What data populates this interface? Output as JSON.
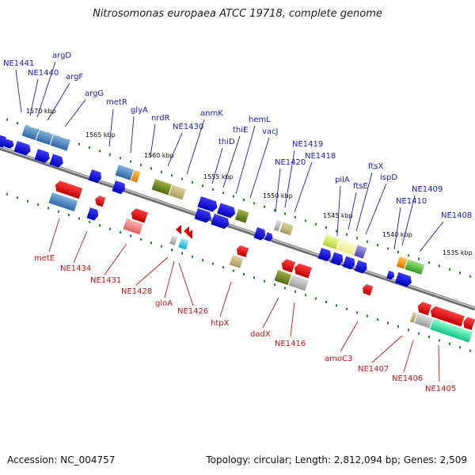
{
  "title": "Nitrosomonas europaea ATCC 19718, complete genome",
  "accession": "Accession: NC_004757",
  "summary": "Topology: circular; Length: 2,812,094 bp; Genes: 2,509",
  "colors": {
    "backbone": "#8a8a8a",
    "forward_label": "#1a1ac8",
    "reverse_label": "#c81414",
    "tick": "#1f8a1f"
  },
  "scale_labels": [
    "1570 kbp",
    "1565 kbp",
    "1560 kbp",
    "1555 kbp",
    "1550 kbp",
    "1545 kbp",
    "1540 kbp",
    "1535 kbp"
  ],
  "forward_labels": [
    "NE1441",
    "argD",
    "NE1440",
    "argF",
    "argG",
    "metR",
    "glyA",
    "nrdR",
    "NE1430",
    "anmK",
    "thiD",
    "thiE",
    "hemL",
    "vacJ",
    "NE1419",
    "NE1420",
    "NE1418",
    "pilA",
    "ftsE",
    "ftsX",
    "ispD",
    "NE1409",
    "NE1410",
    "NE1408"
  ],
  "reverse_labels": [
    "metE",
    "NE1434",
    "NE1431",
    "NE1428",
    "gloA",
    "NE1426",
    "htpX",
    "dadX",
    "NE1416",
    "amoC3",
    "NE1407",
    "NE1406",
    "NE1405"
  ]
}
